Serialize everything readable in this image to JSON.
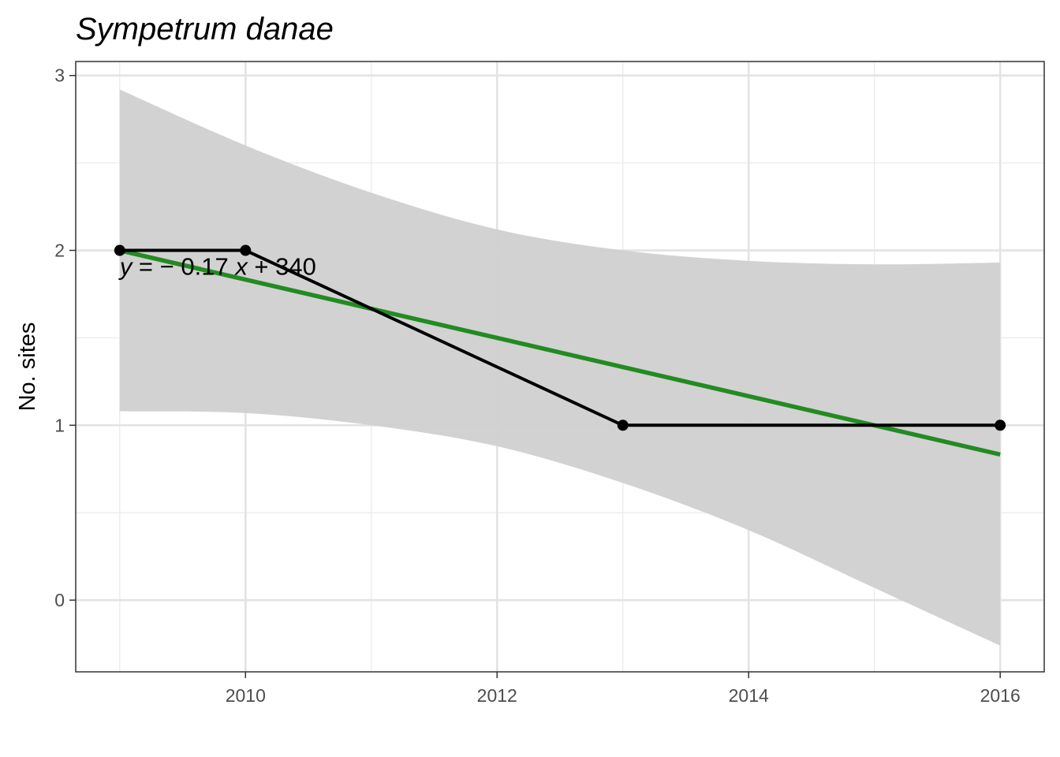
{
  "chart_data": {
    "type": "line",
    "title": "Sympetrum danae",
    "xlabel": "",
    "ylabel": "No. sites",
    "xlim": [
      2008.65,
      2016.35
    ],
    "ylim": [
      -0.41,
      3.08
    ],
    "x_ticks": [
      2010,
      2012,
      2014,
      2016
    ],
    "x_tick_labels": [
      "2010",
      "2012",
      "2014",
      "2016"
    ],
    "x_minor_ticks": [
      2009,
      2011,
      2013,
      2015
    ],
    "y_ticks": [
      0,
      1,
      2,
      3
    ],
    "y_tick_labels": [
      "0",
      "1",
      "2",
      "3"
    ],
    "y_minor_ticks": [
      0.5,
      1.5,
      2.5
    ],
    "grid": true,
    "series": [
      {
        "type": "line",
        "color": "#000000",
        "markers": true,
        "points": [
          {
            "x": 2009,
            "y": 2
          },
          {
            "x": 2010,
            "y": 2
          },
          {
            "x": 2013,
            "y": 1
          },
          {
            "x": 2016,
            "y": 1
          }
        ]
      }
    ],
    "regression": {
      "color": "#228B22",
      "slope": -0.1667,
      "intercept": 336.9,
      "x_range": [
        2009,
        2016
      ],
      "ci_color": "#d0d0d0",
      "ci_band": [
        {
          "x": 2009,
          "lower": 1.08,
          "upper": 2.92
        },
        {
          "x": 2010,
          "lower": 1.07,
          "upper": 2.6
        },
        {
          "x": 2011,
          "lower": 1.0,
          "upper": 2.33
        },
        {
          "x": 2012,
          "lower": 0.88,
          "upper": 2.12
        },
        {
          "x": 2013,
          "lower": 0.67,
          "upper": 2.0
        },
        {
          "x": 2014,
          "lower": 0.4,
          "upper": 1.94
        },
        {
          "x": 2015,
          "lower": 0.07,
          "upper": 1.92
        },
        {
          "x": 2016,
          "lower": -0.26,
          "upper": 1.93
        }
      ]
    },
    "annotation": {
      "x": 2009,
      "y": 1.86,
      "parts": [
        "y",
        " = − 0.17 ",
        "x",
        " + 340"
      ]
    }
  }
}
